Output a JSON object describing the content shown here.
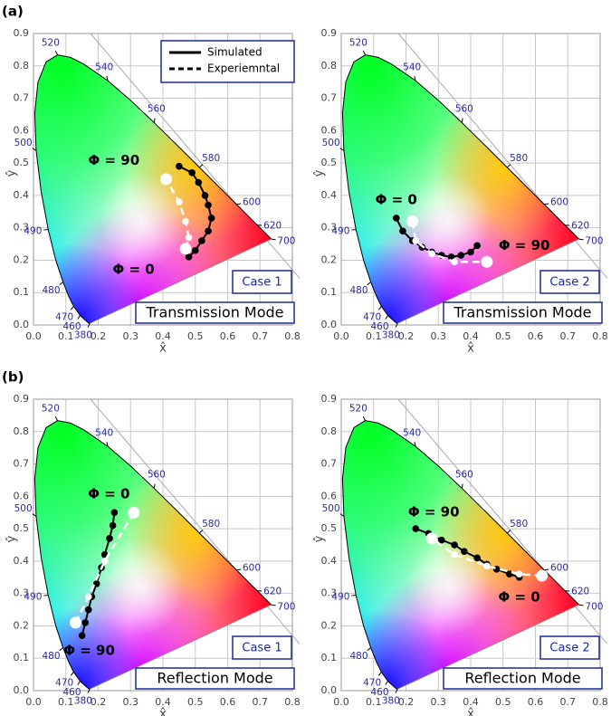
{
  "chart_data": [
    {
      "type": "line",
      "panel_label": "(a)",
      "xlabel": "x̂",
      "ylabel": "ŷ",
      "xlim": [
        0,
        0.8
      ],
      "ylim": [
        0,
        0.9
      ],
      "xticks": [
        {
          "value": 0,
          "label": "0.0"
        },
        0.1,
        0.2,
        0.3,
        0.4,
        0.5,
        0.6,
        0.7,
        0.8
      ],
      "yticks": [
        {
          "value": 0,
          "label": "0.0"
        },
        0.1,
        0.2,
        0.3,
        0.4,
        0.5,
        0.6,
        0.7,
        0.8,
        0.9
      ],
      "grid": true,
      "legend": true,
      "series": [
        {
          "name": "Simulated",
          "color": "#000000",
          "style": "solid",
          "x": [
            0.48,
            0.5,
            0.52,
            0.54,
            0.55,
            0.54,
            0.53,
            0.51,
            0.49,
            0.45
          ],
          "values": [
            0.21,
            0.23,
            0.26,
            0.29,
            0.33,
            0.37,
            0.4,
            0.44,
            0.47,
            0.49
          ]
        },
        {
          "name": "Experiemntal",
          "color": "#ffffff",
          "style": "dashed",
          "x": [
            0.47,
            0.48,
            0.47,
            0.45,
            0.41
          ],
          "values": [
            0.235,
            0.27,
            0.32,
            0.38,
            0.45
          ]
        }
      ],
      "annotations": [
        "Φ = 0",
        "Φ = 90"
      ],
      "case_label": "Case 1",
      "mode_label": "Transmission Mode"
    },
    {
      "type": "line",
      "xlabel": "x̂",
      "ylabel": "ŷ",
      "xlim": [
        0,
        0.8
      ],
      "ylim": [
        0,
        0.9
      ],
      "xticks": [
        {
          "value": 0,
          "label": "0.0"
        },
        0.1,
        0.2,
        0.3,
        0.4,
        0.5,
        0.6,
        0.7,
        0.8
      ],
      "yticks": [
        {
          "value": 0,
          "label": "0.0"
        },
        0.1,
        0.2,
        0.3,
        0.4,
        0.5,
        0.6,
        0.7,
        0.8,
        0.9
      ],
      "grid": true,
      "legend": false,
      "series": [
        {
          "name": "Simulated",
          "color": "#000000",
          "style": "solid",
          "x": [
            0.17,
            0.19,
            0.22,
            0.25,
            0.28,
            0.31,
            0.34,
            0.37,
            0.4,
            0.42
          ],
          "values": [
            0.33,
            0.29,
            0.26,
            0.24,
            0.225,
            0.215,
            0.21,
            0.215,
            0.225,
            0.245
          ]
        },
        {
          "name": "Experiemntal",
          "color": "#ffffff",
          "style": "dashed",
          "x": [
            0.22,
            0.23,
            0.28,
            0.35,
            0.45
          ],
          "values": [
            0.32,
            0.26,
            0.22,
            0.195,
            0.195
          ]
        }
      ],
      "annotations": [
        "Φ = 0",
        "Φ = 90"
      ],
      "case_label": "Case 2",
      "mode_label": "Transmission Mode"
    },
    {
      "type": "line",
      "panel_label": "(b)",
      "xlabel": "x̂",
      "ylabel": "ŷ",
      "xlim": [
        0,
        0.8
      ],
      "ylim": [
        0,
        0.9
      ],
      "xticks": [
        {
          "value": 0,
          "label": "0.0"
        },
        0.1,
        0.2,
        0.3,
        0.4,
        0.5,
        0.6,
        0.7,
        0.8
      ],
      "yticks": [
        {
          "value": 0,
          "label": "0.0"
        },
        0.1,
        0.2,
        0.3,
        0.4,
        0.5,
        0.6,
        0.7,
        0.8,
        0.9
      ],
      "grid": true,
      "legend": false,
      "series": [
        {
          "name": "Simulated",
          "color": "#000000",
          "style": "solid",
          "x": [
            0.25,
            0.245,
            0.235,
            0.22,
            0.21,
            0.195,
            0.18,
            0.17,
            0.16,
            0.15
          ],
          "values": [
            0.55,
            0.51,
            0.47,
            0.42,
            0.38,
            0.33,
            0.29,
            0.25,
            0.21,
            0.17
          ]
        },
        {
          "name": "Experiemntal",
          "color": "#ffffff",
          "style": "dashed",
          "x": [
            0.31,
            0.22,
            0.17,
            0.13
          ],
          "values": [
            0.55,
            0.4,
            0.29,
            0.21
          ]
        }
      ],
      "annotations": [
        "Φ = 0",
        "Φ = 90"
      ],
      "case_label": "Case 1",
      "mode_label": "Reflection Mode"
    },
    {
      "type": "line",
      "xlabel": "x̂",
      "ylabel": "ŷ",
      "xlim": [
        0,
        0.8
      ],
      "ylim": [
        0,
        0.9
      ],
      "xticks": [
        {
          "value": 0,
          "label": "0.0"
        },
        0.1,
        0.2,
        0.3,
        0.4,
        0.5,
        0.6,
        0.7,
        0.8
      ],
      "yticks": [
        {
          "value": 0,
          "label": "0.0"
        },
        0.1,
        0.2,
        0.3,
        0.4,
        0.5,
        0.6,
        0.7,
        0.8,
        0.9
      ],
      "grid": true,
      "legend": false,
      "series": [
        {
          "name": "Simulated",
          "color": "#000000",
          "style": "solid",
          "x": [
            0.55,
            0.52,
            0.48,
            0.45,
            0.42,
            0.38,
            0.35,
            0.31,
            0.27,
            0.23
          ],
          "values": [
            0.35,
            0.36,
            0.375,
            0.39,
            0.41,
            0.43,
            0.45,
            0.465,
            0.485,
            0.5
          ]
        },
        {
          "name": "Experiemntal",
          "color": "#ffffff",
          "style": "dashed",
          "x": [
            0.62,
            0.55,
            0.45,
            0.35,
            0.28
          ],
          "values": [
            0.355,
            0.36,
            0.385,
            0.42,
            0.47
          ]
        }
      ],
      "annotations": [
        "Φ = 0",
        "Φ = 90"
      ],
      "case_label": "Case 2",
      "mode_label": "Reflection Mode"
    }
  ],
  "spectral_locus": {
    "wavelengths": [
      380,
      null,
      null,
      null,
      460,
      470,
      null,
      480,
      null,
      490,
      null,
      500,
      null,
      null,
      null,
      520,
      null,
      null,
      540,
      null,
      560,
      null,
      580,
      null,
      600,
      620,
      null,
      700
    ],
    "x": [
      0.1741,
      0.1714,
      0.1644,
      0.1566,
      0.144,
      0.1241,
      0.1096,
      0.0913,
      0.0687,
      0.0454,
      0.0235,
      0.0082,
      0.0039,
      0.0139,
      0.0389,
      0.0743,
      0.1142,
      0.1547,
      0.2296,
      0.3016,
      0.3731,
      0.4441,
      0.5125,
      0.5752,
      0.627,
      0.6915,
      0.719,
      0.7347
    ],
    "y": [
      0.005,
      0.0051,
      0.0109,
      0.0177,
      0.0297,
      0.0578,
      0.0868,
      0.1327,
      0.2007,
      0.295,
      0.4127,
      0.5384,
      0.6548,
      0.7502,
      0.812,
      0.8338,
      0.8262,
      0.8059,
      0.7543,
      0.6923,
      0.6245,
      0.5547,
      0.4866,
      0.4242,
      0.3725,
      0.3083,
      0.2809,
      0.2653
    ]
  }
}
